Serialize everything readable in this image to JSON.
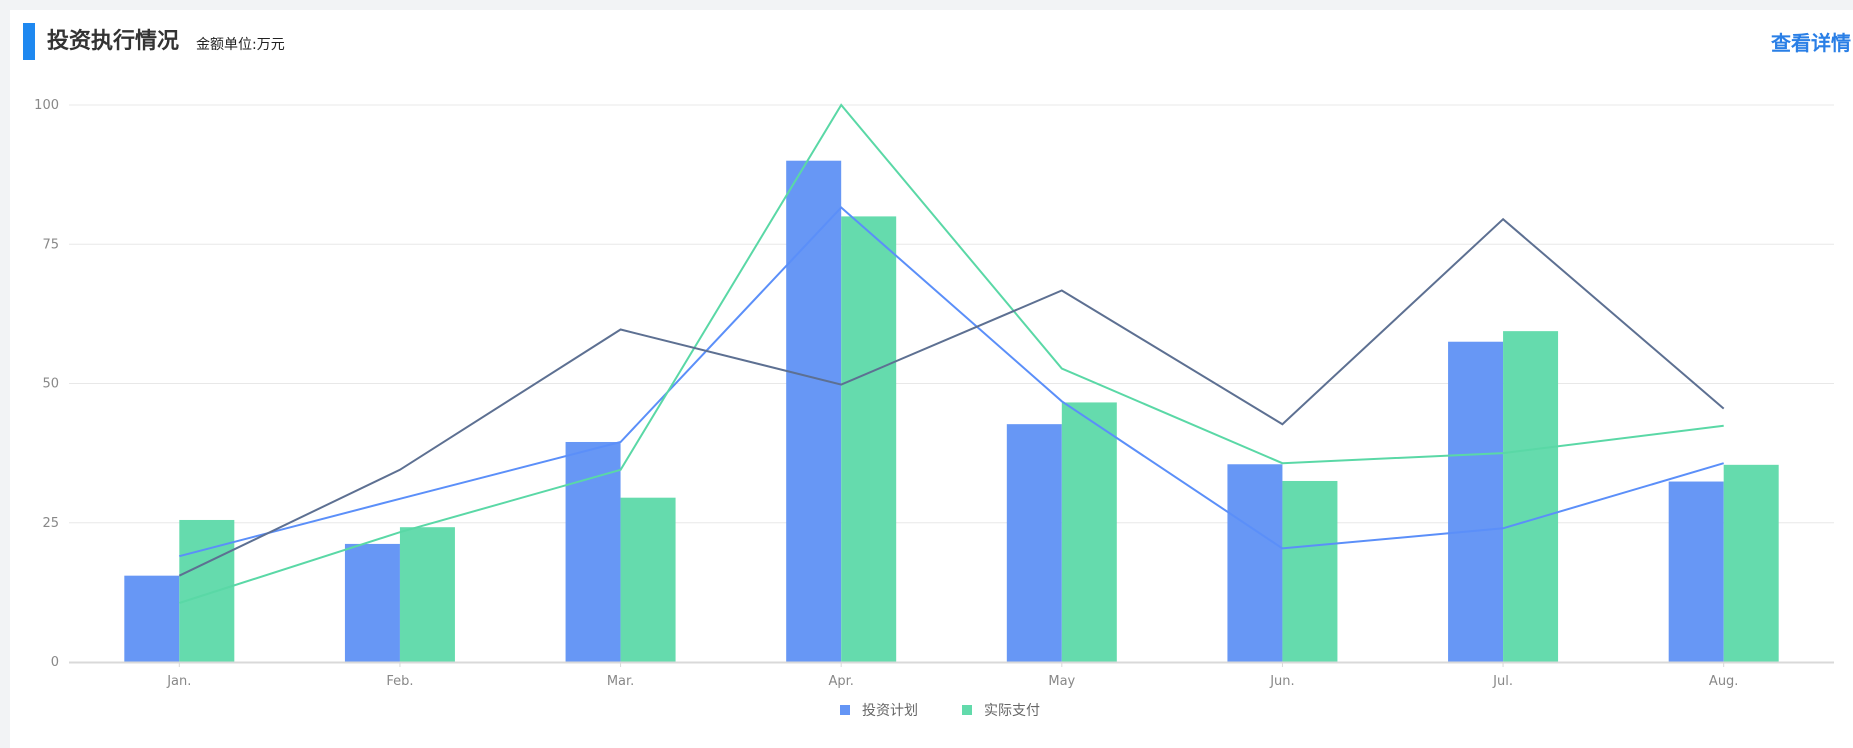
{
  "header": {
    "title": "投资执行情况",
    "unit": "金额单位:万元",
    "detail_link": "查看详情",
    "accent_color": "#1e88f0",
    "link_color": "#2a7fe6"
  },
  "legend": {
    "items": [
      {
        "label": "投资计划",
        "color": "#6495f5"
      },
      {
        "label": "实际支付",
        "color": "#62daab"
      }
    ]
  },
  "chart_data": {
    "type": "bar",
    "title": "投资执行情况",
    "subtitle": "金额单位:万元",
    "xlabel": "",
    "ylabel": "",
    "ylim": [
      0,
      100
    ],
    "yticks": [
      0,
      25,
      50,
      75,
      100
    ],
    "grid": true,
    "legend_position": "bottom",
    "categories": [
      "Jan.",
      "Feb.",
      "Mar.",
      "Apr.",
      "May",
      "Jun.",
      "Jul.",
      "Aug."
    ],
    "series": [
      {
        "name": "投资计划",
        "type": "bar",
        "color": "#6495f5",
        "values": [
          15.5,
          21.2,
          39.5,
          90,
          42.7,
          35.5,
          57.5,
          32.4
        ]
      },
      {
        "name": "实际支付",
        "type": "bar",
        "color": "#62daab",
        "values": [
          25.5,
          24.2,
          29.5,
          80,
          46.6,
          32.5,
          59.4,
          35.4
        ]
      },
      {
        "name": "line-blue",
        "type": "line",
        "color": "#5b8ff9",
        "values": [
          19,
          29.3,
          39.5,
          81.6,
          46.8,
          20.4,
          24,
          35.7
        ]
      },
      {
        "name": "line-green",
        "type": "line",
        "color": "#5ad8a6",
        "values": [
          10.6,
          23.3,
          34.5,
          100,
          52.7,
          35.7,
          37.5,
          42.4
        ]
      },
      {
        "name": "line-slate",
        "type": "line",
        "color": "#5d7092",
        "values": [
          15.5,
          34.5,
          59.7,
          49.8,
          66.7,
          42.7,
          79.5,
          45.5
        ]
      }
    ]
  }
}
